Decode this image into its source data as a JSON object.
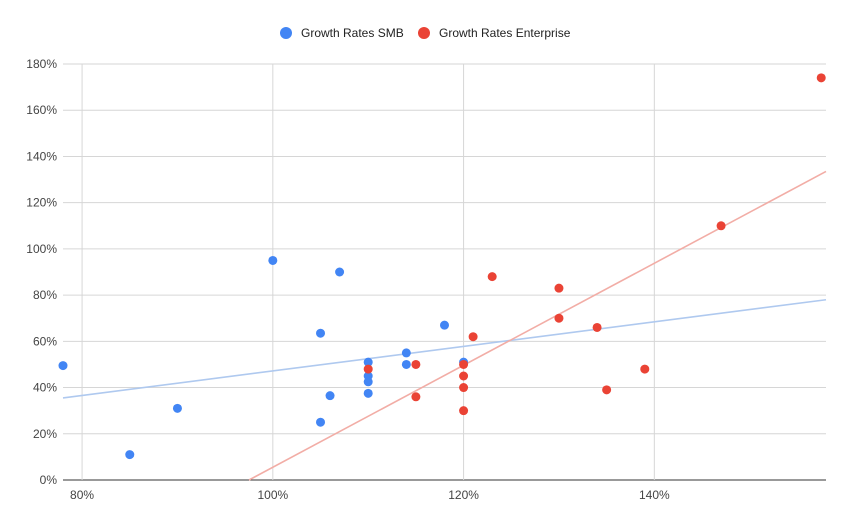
{
  "chart_data": {
    "type": "scatter",
    "title": "",
    "xlabel": "",
    "ylabel": "",
    "xlim": [
      0.78,
      1.58
    ],
    "ylim": [
      0,
      1.8
    ],
    "x_ticks": [
      {
        "value": 0.8,
        "label": "80%"
      },
      {
        "value": 1.0,
        "label": "100%"
      },
      {
        "value": 1.2,
        "label": "120%"
      },
      {
        "value": 1.4,
        "label": "140%"
      }
    ],
    "y_ticks": [
      {
        "value": 0.0,
        "label": "0%"
      },
      {
        "value": 0.2,
        "label": "20%"
      },
      {
        "value": 0.4,
        "label": "40%"
      },
      {
        "value": 0.6,
        "label": "60%"
      },
      {
        "value": 0.8,
        "label": "80%"
      },
      {
        "value": 1.0,
        "label": "100%"
      },
      {
        "value": 1.2,
        "label": "120%"
      },
      {
        "value": 1.4,
        "label": "140%"
      },
      {
        "value": 1.6,
        "label": "160%"
      },
      {
        "value": 1.8,
        "label": "180%"
      }
    ],
    "grid": true,
    "legend_position": "top-center",
    "series": [
      {
        "name": "Growth Rates SMB",
        "color": "#4285F4",
        "trendline_color": "#AFC9EF",
        "trendline": [
          [
            0.78,
            0.355
          ],
          [
            1.58,
            0.78
          ]
        ],
        "points": [
          [
            0.78,
            0.495
          ],
          [
            0.85,
            0.11
          ],
          [
            0.9,
            0.31
          ],
          [
            1.0,
            0.95
          ],
          [
            1.05,
            0.635
          ],
          [
            1.05,
            0.25
          ],
          [
            1.06,
            0.365
          ],
          [
            1.07,
            0.9
          ],
          [
            1.1,
            0.51
          ],
          [
            1.1,
            0.45
          ],
          [
            1.1,
            0.425
          ],
          [
            1.1,
            0.375
          ],
          [
            1.14,
            0.55
          ],
          [
            1.14,
            0.5
          ],
          [
            1.18,
            0.67
          ],
          [
            1.2,
            0.51
          ]
        ]
      },
      {
        "name": "Growth Rates Enterprise",
        "color": "#EA4335",
        "trendline_color": "#F2ADA6",
        "trendline": [
          [
            0.975,
            0.0
          ],
          [
            1.58,
            1.335
          ]
        ],
        "points": [
          [
            1.1,
            0.48
          ],
          [
            1.15,
            0.5
          ],
          [
            1.15,
            0.36
          ],
          [
            1.2,
            0.5
          ],
          [
            1.2,
            0.45
          ],
          [
            1.2,
            0.4
          ],
          [
            1.2,
            0.3
          ],
          [
            1.21,
            0.62
          ],
          [
            1.23,
            0.88
          ],
          [
            1.3,
            0.83
          ],
          [
            1.3,
            0.7
          ],
          [
            1.34,
            0.66
          ],
          [
            1.35,
            0.39
          ],
          [
            1.39,
            0.48
          ],
          [
            1.47,
            1.1
          ],
          [
            1.575,
            1.74
          ]
        ]
      }
    ]
  }
}
